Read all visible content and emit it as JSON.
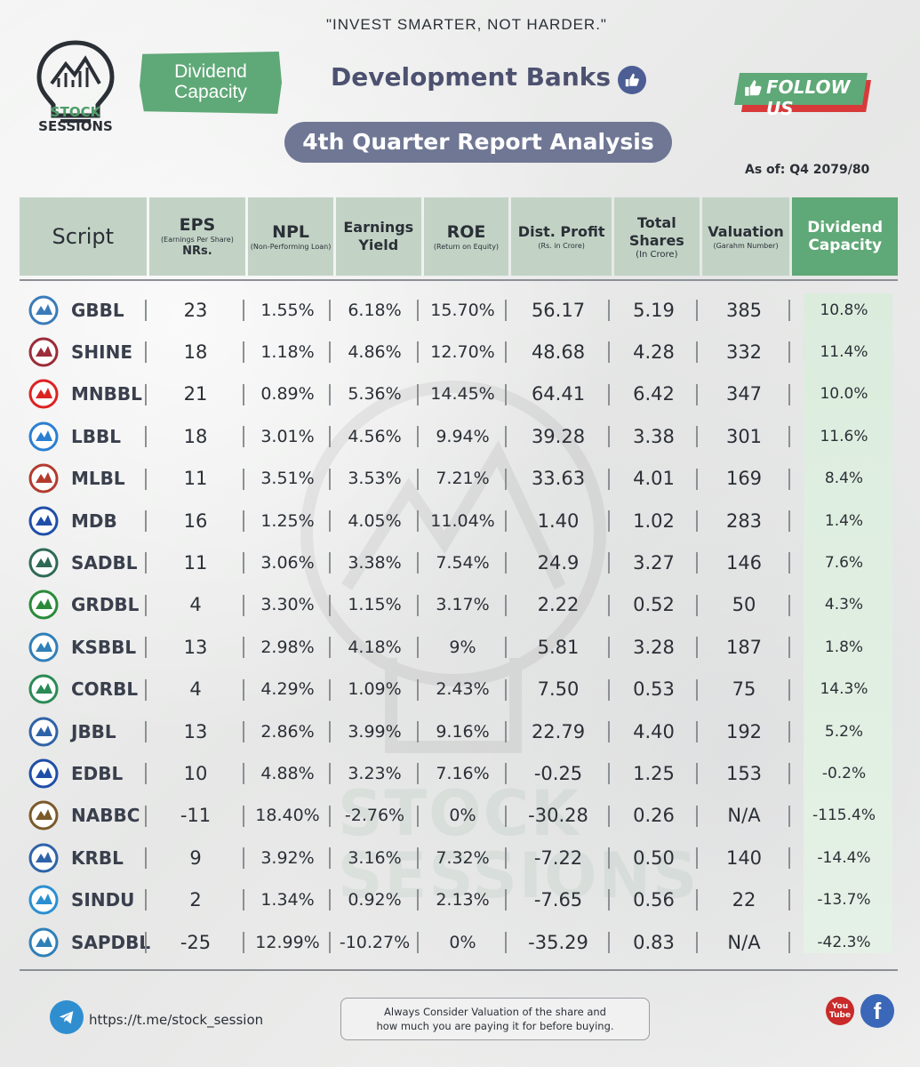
{
  "header": {
    "tagline": "\"INVEST SMARTER, NOT HARDER.\"",
    "brand_line1": "STOCK",
    "brand_line2": "SESSIONS",
    "badge_line1": "Dividend",
    "badge_line2": "Capacity",
    "title": "Development Banks",
    "follow_label": "FOLLOW US",
    "subtitle": "4th Quarter Report Analysis",
    "as_of": "As of: Q4 2079/80"
  },
  "table": {
    "columns": [
      {
        "label": "Script",
        "sub": "",
        "sub2": ""
      },
      {
        "label": "EPS",
        "sub": "(Earnings Per Share)",
        "sub2": "NRs."
      },
      {
        "label": "NPL",
        "sub": "(Non-Performing Loan)",
        "sub2": ""
      },
      {
        "label": "Earnings",
        "sub": "",
        "sub2": "Yield"
      },
      {
        "label": "ROE",
        "sub": "(Return on Equity)",
        "sub2": ""
      },
      {
        "label": "Dist. Profit",
        "sub": "(Rs. in Crore)",
        "sub2": ""
      },
      {
        "label": "Total",
        "sub": "Shares",
        "sub2": "(In Crore)"
      },
      {
        "label": "Valuation",
        "sub": "(Garahm Number)",
        "sub2": ""
      },
      {
        "label": "Dividend",
        "sub": "Capacity",
        "sub2": ""
      }
    ],
    "rows": [
      {
        "script": "GBBL",
        "eps": "23",
        "npl": "1.55%",
        "ey": "6.18%",
        "roe": "15.70%",
        "dp": "56.17",
        "ts": "5.19",
        "val": "385",
        "dc": "10.8%"
      },
      {
        "script": "SHINE",
        "eps": "18",
        "npl": "1.18%",
        "ey": "4.86%",
        "roe": "12.70%",
        "dp": "48.68",
        "ts": "4.28",
        "val": "332",
        "dc": "11.4%"
      },
      {
        "script": "MNBBL",
        "eps": "21",
        "npl": "0.89%",
        "ey": "5.36%",
        "roe": "14.45%",
        "dp": "64.41",
        "ts": "6.42",
        "val": "347",
        "dc": "10.0%"
      },
      {
        "script": "LBBL",
        "eps": "18",
        "npl": "3.01%",
        "ey": "4.56%",
        "roe": "9.94%",
        "dp": "39.28",
        "ts": "3.38",
        "val": "301",
        "dc": "11.6%"
      },
      {
        "script": "MLBL",
        "eps": "11",
        "npl": "3.51%",
        "ey": "3.53%",
        "roe": "7.21%",
        "dp": "33.63",
        "ts": "4.01",
        "val": "169",
        "dc": "8.4%"
      },
      {
        "script": "MDB",
        "eps": "16",
        "npl": "1.25%",
        "ey": "4.05%",
        "roe": "11.04%",
        "dp": "1.40",
        "ts": "1.02",
        "val": "283",
        "dc": "1.4%"
      },
      {
        "script": "SADBL",
        "eps": "11",
        "npl": "3.06%",
        "ey": "3.38%",
        "roe": "7.54%",
        "dp": "24.9",
        "ts": "3.27",
        "val": "146",
        "dc": "7.6%"
      },
      {
        "script": "GRDBL",
        "eps": "4",
        "npl": "3.30%",
        "ey": "1.15%",
        "roe": "3.17%",
        "dp": "2.22",
        "ts": "0.52",
        "val": "50",
        "dc": "4.3%"
      },
      {
        "script": "KSBBL",
        "eps": "13",
        "npl": "2.98%",
        "ey": "4.18%",
        "roe": "9%",
        "dp": "5.81",
        "ts": "3.28",
        "val": "187",
        "dc": "1.8%"
      },
      {
        "script": "CORBL",
        "eps": "4",
        "npl": "4.29%",
        "ey": "1.09%",
        "roe": "2.43%",
        "dp": "7.50",
        "ts": "0.53",
        "val": "75",
        "dc": "14.3%"
      },
      {
        "script": "JBBL",
        "eps": "13",
        "npl": "2.86%",
        "ey": "3.99%",
        "roe": "9.16%",
        "dp": "22.79",
        "ts": "4.40",
        "val": "192",
        "dc": "5.2%"
      },
      {
        "script": "EDBL",
        "eps": "10",
        "npl": "4.88%",
        "ey": "3.23%",
        "roe": "7.16%",
        "dp": "-0.25",
        "ts": "1.25",
        "val": "153",
        "dc": "-0.2%"
      },
      {
        "script": "NABBC",
        "eps": "-11",
        "npl": "18.40%",
        "ey": "-2.76%",
        "roe": "0%",
        "dp": "-30.28",
        "ts": "0.26",
        "val": "N/A",
        "dc": "-115.4%"
      },
      {
        "script": "KRBL",
        "eps": "9",
        "npl": "3.92%",
        "ey": "3.16%",
        "roe": "7.32%",
        "dp": "-7.22",
        "ts": "0.50",
        "val": "140",
        "dc": "-14.4%"
      },
      {
        "script": "SINDU",
        "eps": "2",
        "npl": "1.34%",
        "ey": "0.92%",
        "roe": "2.13%",
        "dp": "-7.65",
        "ts": "0.56",
        "val": "22",
        "dc": "-13.7%"
      },
      {
        "script": "SAPDBL",
        "eps": "-25",
        "npl": "12.99%",
        "ey": "-10.27%",
        "roe": "0%",
        "dp": "-35.29",
        "ts": "0.83",
        "val": "N/A",
        "dc": "-42.3%"
      }
    ]
  },
  "footer": {
    "telegram_link": "https://t.me/stock_session",
    "note_line1": "Always Consider Valuation of the share and",
    "note_line2": "how much you are paying it for before buying.",
    "youtube_label": "You Tube",
    "facebook_label": "f"
  },
  "colors": {
    "accent_green": "#5fa877",
    "header_bg": "#c2d3c6",
    "title_color": "#4d5170",
    "subtitle_bg": "#6f7794",
    "follow_red": "#d83a3a"
  }
}
